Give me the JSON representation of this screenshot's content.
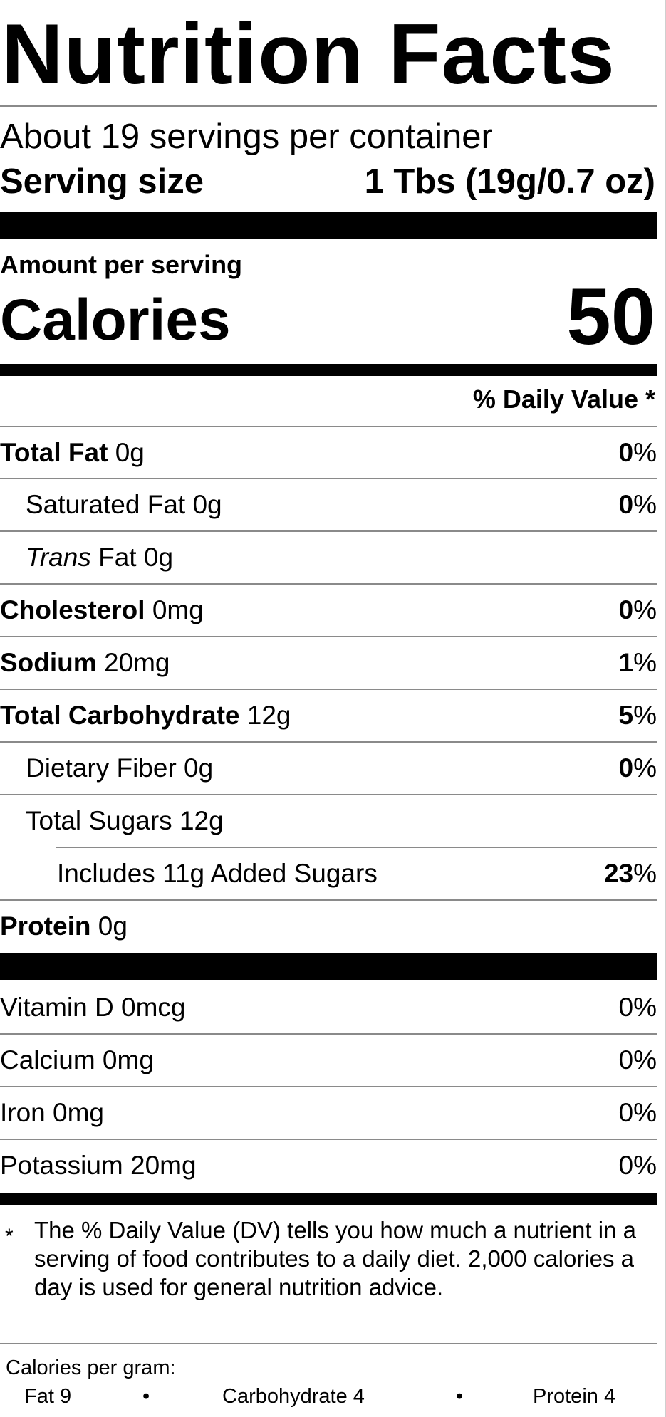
{
  "title": "Nutrition Facts",
  "servings_per_container": "About 19 servings per container",
  "serving_size": {
    "label": "Serving size",
    "value": "1 Tbs (19g/0.7 oz)"
  },
  "amount_per_serving": "Amount per serving",
  "calories": {
    "label": "Calories",
    "value": "50"
  },
  "daily_value_header": "% Daily Value *",
  "nutrients": [
    {
      "bold": "Total Fat",
      "italic": "",
      "rest": " 0g",
      "pct_bold": "0",
      "pct_rest": "%"
    },
    {
      "bold": "",
      "italic": "",
      "rest": "Saturated Fat 0g",
      "pct_bold": "0",
      "pct_rest": "%"
    },
    {
      "bold": "",
      "italic": "Trans",
      "rest": " Fat 0g",
      "pct_bold": "",
      "pct_rest": ""
    },
    {
      "bold": "Cholesterol",
      "italic": "",
      "rest": " 0mg",
      "pct_bold": "0",
      "pct_rest": "%"
    },
    {
      "bold": "Sodium",
      "italic": "",
      "rest": " 20mg",
      "pct_bold": "1",
      "pct_rest": "%"
    },
    {
      "bold": "Total Carbohydrate",
      "italic": "",
      "rest": " 12g",
      "pct_bold": "5",
      "pct_rest": "%"
    },
    {
      "bold": "",
      "italic": "",
      "rest": "Dietary Fiber 0g",
      "pct_bold": "0",
      "pct_rest": "%"
    },
    {
      "bold": "",
      "italic": "",
      "rest": "Total Sugars 12g",
      "pct_bold": "",
      "pct_rest": ""
    },
    {
      "bold": "",
      "italic": "",
      "rest": "Includes 11g Added Sugars",
      "pct_bold": "23",
      "pct_rest": "%"
    },
    {
      "bold": "Protein",
      "italic": "",
      "rest": " 0g",
      "pct_bold": "",
      "pct_rest": ""
    }
  ],
  "vitamins": [
    {
      "name": "Vitamin D 0mcg",
      "pct": "0%"
    },
    {
      "name": "Calcium 0mg",
      "pct": "0%"
    },
    {
      "name": "Iron 0mg",
      "pct": "0%"
    },
    {
      "name": "Potassium 20mg",
      "pct": "0%"
    }
  ],
  "footnote": {
    "star": "*",
    "text": "The % Daily Value (DV) tells you how much a nutrient in a serving of food contributes to a daily diet. 2,000 calories a day is used for general nutrition advice."
  },
  "calories_per_gram": {
    "label": "Calories per gram:",
    "fat": "Fat 9",
    "bullet": "•",
    "carbohydrate": "Carbohydrate 4",
    "protein": "Protein 4"
  }
}
